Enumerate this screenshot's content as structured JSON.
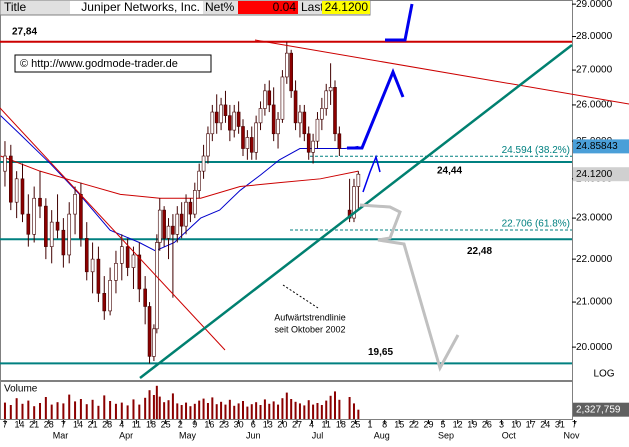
{
  "header": {
    "title": "Title",
    "name": "Juniper Networks, Inc.",
    "net_label": "Net%",
    "net": 0.04,
    "last_label": "Last",
    "last": {
      "value": 24.12,
      "label": "24.1200"
    }
  },
  "chart_data": {
    "type": "candlestick",
    "log_scale": true,
    "copyright": "© http://www.godmode-trader.de",
    "annotation": [
      "Aufwärtstrendlinie",
      "seit Oktober 2002"
    ],
    "scale_label": "LOG",
    "xlim": [
      -0.34,
      38.83
    ],
    "ylim": [
      19.3,
      29.13
    ],
    "yticks": [
      {
        "value": 29,
        "label": "29.0000"
      },
      {
        "value": 28,
        "label": "28.0000"
      },
      {
        "value": 27,
        "label": "27.0000"
      },
      {
        "value": 26,
        "label": "26.0000"
      },
      {
        "value": 25,
        "label": "25.0000"
      },
      {
        "value": 24,
        "label": "24.0000"
      },
      {
        "value": 23,
        "label": "23.0000"
      },
      {
        "value": 22,
        "label": "22.0000"
      },
      {
        "value": 21,
        "label": "21.0000"
      },
      {
        "value": 20,
        "label": "20.0000"
      }
    ],
    "xticks": [
      {
        "value": 0,
        "label": "7"
      },
      {
        "value": 1,
        "label": "14"
      },
      {
        "value": 2,
        "label": "21"
      },
      {
        "value": 3,
        "label": "28"
      },
      {
        "value": 4,
        "label": "7"
      },
      {
        "value": 5,
        "label": "14"
      },
      {
        "value": 6,
        "label": "21"
      },
      {
        "value": 7,
        "label": "28"
      },
      {
        "value": 8,
        "label": "4"
      },
      {
        "value": 9,
        "label": "11"
      },
      {
        "value": 10,
        "label": "18"
      },
      {
        "value": 11,
        "label": "25"
      },
      {
        "value": 12,
        "label": "2"
      },
      {
        "value": 13,
        "label": "9"
      },
      {
        "value": 14,
        "label": "16"
      },
      {
        "value": 15,
        "label": "23"
      },
      {
        "value": 16,
        "label": "30"
      },
      {
        "value": 17,
        "label": "6"
      },
      {
        "value": 18,
        "label": "13"
      },
      {
        "value": 19,
        "label": "20"
      },
      {
        "value": 20,
        "label": "27"
      },
      {
        "value": 21,
        "label": "4"
      },
      {
        "value": 22,
        "label": "11"
      },
      {
        "value": 23,
        "label": "18"
      },
      {
        "value": 24,
        "label": "25"
      },
      {
        "value": 25,
        "label": "1"
      },
      {
        "value": 26,
        "label": "8"
      },
      {
        "value": 27,
        "label": "15"
      },
      {
        "value": 28,
        "label": "22"
      },
      {
        "value": 29,
        "label": "29"
      },
      {
        "value": 30,
        "label": "5"
      },
      {
        "value": 31,
        "label": "12"
      },
      {
        "value": 32,
        "label": "19"
      },
      {
        "value": 33,
        "label": "26"
      },
      {
        "value": 34,
        "label": "3"
      },
      {
        "value": 35,
        "label": "10"
      },
      {
        "value": 36,
        "label": "17"
      },
      {
        "value": 37,
        "label": "24"
      },
      {
        "value": 38,
        "label": "31"
      },
      {
        "value": 39,
        "label": "7"
      }
    ],
    "months": [
      {
        "value": 3.8,
        "label": "Mar"
      },
      {
        "value": 8.3,
        "label": "Apr"
      },
      {
        "value": 12.5,
        "label": "May"
      },
      {
        "value": 17,
        "label": "Jun"
      },
      {
        "value": 21.4,
        "label": "Jul"
      },
      {
        "value": 25.8,
        "label": "Aug"
      },
      {
        "value": 30.2,
        "label": "Sep"
      },
      {
        "value": 34.5,
        "label": "Oct"
      },
      {
        "value": 38.8,
        "label": "Nov"
      }
    ],
    "candles": [
      [
        0,
        24.2,
        25.0,
        23.8,
        24.6
      ],
      [
        0.4,
        24.6,
        24.9,
        23.2,
        23.4
      ],
      [
        0.8,
        23.4,
        24.2,
        23.0,
        24.0
      ],
      [
        1.2,
        24.0,
        24.4,
        22.9,
        23.1
      ],
      [
        1.6,
        23.1,
        23.6,
        22.3,
        22.6
      ],
      [
        2.0,
        22.6,
        23.8,
        22.4,
        23.5
      ],
      [
        2.4,
        23.5,
        24.2,
        23.0,
        23.3
      ],
      [
        2.8,
        23.3,
        23.5,
        22.0,
        22.3
      ],
      [
        3.2,
        22.3,
        23.2,
        21.9,
        22.9
      ],
      [
        3.6,
        22.9,
        23.6,
        22.5,
        22.7
      ],
      [
        4.0,
        22.7,
        23.0,
        21.8,
        22.1
      ],
      [
        4.4,
        22.1,
        23.4,
        21.9,
        23.1
      ],
      [
        4.8,
        23.1,
        23.8,
        22.6,
        23.6
      ],
      [
        5.2,
        23.6,
        23.9,
        22.3,
        22.5
      ],
      [
        5.6,
        22.5,
        22.9,
        21.5,
        21.7
      ],
      [
        6.0,
        21.7,
        22.4,
        21.2,
        22.0
      ],
      [
        6.4,
        22.0,
        22.3,
        21.0,
        21.2
      ],
      [
        6.8,
        21.2,
        21.6,
        20.6,
        20.8
      ],
      [
        7.2,
        20.8,
        21.8,
        20.7,
        21.5
      ],
      [
        7.6,
        21.5,
        22.2,
        21.2,
        21.9
      ],
      [
        8.0,
        21.9,
        22.6,
        21.5,
        22.3
      ],
      [
        8.4,
        22.3,
        22.5,
        21.6,
        21.8
      ],
      [
        8.8,
        21.8,
        22.3,
        21.3,
        22.1
      ],
      [
        9.2,
        22.1,
        22.4,
        21.0,
        21.3
      ],
      [
        9.6,
        21.3,
        21.6,
        20.5,
        20.9
      ],
      [
        9.9,
        20.9,
        21.0,
        19.65,
        19.8
      ],
      [
        10.2,
        19.8,
        20.5,
        19.7,
        20.4
      ],
      [
        10.4,
        20.4,
        22.6,
        20.3,
        22.4
      ],
      [
        10.6,
        22.4,
        23.5,
        22.2,
        23.2
      ],
      [
        10.9,
        23.2,
        23.3,
        22.3,
        22.5
      ],
      [
        11.2,
        22.5,
        23.0,
        22.0,
        22.8
      ],
      [
        11.5,
        22.8,
        23.1,
        21.1,
        22.6
      ],
      [
        11.8,
        22.6,
        23.3,
        22.4,
        23.1
      ],
      [
        12.1,
        23.1,
        23.4,
        22.5,
        22.8
      ],
      [
        12.4,
        22.8,
        23.6,
        22.6,
        23.4
      ],
      [
        12.7,
        23.4,
        23.5,
        22.9,
        23.1
      ],
      [
        13.0,
        23.1,
        23.9,
        23.0,
        23.7
      ],
      [
        13.3,
        23.7,
        24.4,
        23.5,
        24.2
      ],
      [
        13.6,
        24.2,
        24.9,
        24.0,
        24.6
      ],
      [
        13.9,
        24.6,
        25.4,
        24.4,
        25.2
      ],
      [
        14.2,
        25.2,
        26.0,
        25.0,
        25.8
      ],
      [
        14.5,
        25.8,
        26.3,
        25.2,
        25.5
      ],
      [
        14.8,
        25.5,
        26.2,
        25.3,
        26.0
      ],
      [
        15.1,
        26.0,
        26.4,
        25.5,
        25.7
      ],
      [
        15.4,
        25.7,
        26.0,
        25.0,
        25.3
      ],
      [
        15.7,
        25.3,
        26.0,
        25.1,
        25.8
      ],
      [
        16.0,
        25.8,
        26.1,
        25.2,
        25.4
      ],
      [
        16.3,
        25.4,
        25.6,
        24.6,
        24.8
      ],
      [
        16.6,
        24.8,
        25.3,
        24.5,
        25.1
      ],
      [
        16.9,
        25.1,
        25.4,
        24.5,
        24.7
      ],
      [
        17.2,
        24.7,
        25.7,
        24.5,
        25.5
      ],
      [
        17.5,
        25.5,
        26.1,
        25.3,
        25.9
      ],
      [
        17.8,
        25.9,
        26.6,
        25.7,
        26.4
      ],
      [
        18.1,
        26.4,
        26.7,
        25.8,
        26.0
      ],
      [
        18.4,
        26.0,
        26.5,
        25.0,
        25.2
      ],
      [
        18.7,
        25.2,
        25.8,
        24.8,
        25.6
      ],
      [
        19.0,
        25.6,
        27.0,
        25.5,
        26.8
      ],
      [
        19.3,
        26.8,
        27.84,
        26.6,
        27.5
      ],
      [
        19.6,
        27.5,
        27.6,
        26.2,
        26.4
      ],
      [
        19.9,
        26.4,
        26.7,
        25.3,
        25.5
      ],
      [
        20.2,
        25.5,
        26.0,
        25.1,
        25.8
      ],
      [
        20.5,
        25.8,
        26.0,
        25.0,
        25.2
      ],
      [
        20.8,
        25.2,
        25.4,
        24.5,
        24.7
      ],
      [
        21.1,
        24.7,
        25.2,
        24.4,
        25.0
      ],
      [
        21.4,
        25.0,
        25.8,
        24.8,
        25.6
      ],
      [
        21.7,
        25.6,
        26.2,
        25.3,
        25.9
      ],
      [
        22.0,
        25.9,
        26.6,
        25.7,
        26.4
      ],
      [
        22.3,
        26.4,
        27.2,
        26.0,
        26.5
      ],
      [
        22.6,
        26.5,
        26.7,
        25.0,
        25.2
      ],
      [
        22.9,
        25.2,
        25.4,
        24.6,
        24.8
      ],
      [
        23.6,
        23.2,
        24.0,
        22.9,
        23.0
      ],
      [
        23.9,
        23.0,
        24.0,
        22.9,
        23.8
      ],
      [
        24.2,
        23.8,
        24.2,
        23.2,
        24.12
      ]
    ],
    "candle_colors": {
      "up": "#ffffff",
      "down": "#8b0000",
      "wick": "#400000"
    },
    "last_close_label": "24.1200",
    "moving_averages": [
      {
        "color": "#0000cc",
        "x": [
          -0.3,
          1.0,
          3.1,
          5.1,
          7.2,
          9.2,
          10.3,
          11.6,
          13.4,
          14.7,
          16.1,
          17.5,
          18.8,
          20.2,
          21.6,
          22.6,
          23.3,
          24.2
        ],
        "values": [
          25.7,
          25.2,
          24.4,
          23.6,
          22.7,
          22.4,
          22.2,
          22.4,
          23.0,
          23.2,
          23.7,
          24.1,
          24.5,
          24.8,
          24.8,
          24.8,
          24.8,
          24.85843
        ],
        "last_label": "24.85843"
      },
      {
        "color": "#cc0000",
        "x": [
          -0.3,
          2.4,
          5.1,
          7.9,
          10.6,
          13.4,
          16.1,
          18.8,
          21.6,
          24.2
        ],
        "values": [
          24.6,
          24.2,
          23.9,
          23.6,
          23.5,
          23.5,
          23.8,
          23.9,
          24.0,
          24.2
        ]
      }
    ],
    "levels": [
      {
        "value": 27.84,
        "label": "27,84",
        "color": "#cc0000"
      },
      {
        "value": 24.44,
        "label": "24,44",
        "color": "#008080"
      },
      {
        "value": 22.48,
        "label": "22,48",
        "color": "#008080"
      },
      {
        "value": 19.65,
        "label": "19,65",
        "color": "#008080"
      }
    ],
    "fibs": [
      {
        "value": 24.594,
        "label": "24.594 (38.2%)"
      },
      {
        "value": 22.706,
        "label": "22.706 (61.8%)"
      }
    ],
    "volume": {
      "title": "Volume",
      "color": "#8b0000",
      "ylim": [
        0,
        9000000
      ],
      "last_label": "2,327,759",
      "values": [
        4100000,
        3500000,
        5200000,
        3800000,
        4600000,
        3200000,
        4000000,
        5500000,
        3600000,
        4200000,
        3900000,
        6100000,
        4400000,
        5000000,
        3700000,
        4800000,
        3300000,
        5900000,
        4500000,
        3800000,
        4100000,
        3400000,
        4900000,
        3600000,
        5300000,
        7200000,
        6000000,
        8300000,
        5600000,
        4200000,
        4700000,
        6400000,
        3900000,
        3500000,
        4100000,
        3200000,
        3800000,
        4600000,
        5100000,
        4000000,
        5400000,
        3700000,
        4300000,
        3600000,
        4800000,
        3300000,
        3900000,
        4500000,
        3100000,
        3700000,
        4200000,
        3500000,
        4900000,
        3800000,
        4400000,
        3600000,
        5200000,
        6600000,
        5000000,
        4300000,
        3900000,
        3400000,
        4700000,
        3600000,
        4000000,
        3500000,
        4600000,
        5800000,
        6900000,
        4800000,
        5500000,
        3900000,
        2327759
      ]
    }
  }
}
